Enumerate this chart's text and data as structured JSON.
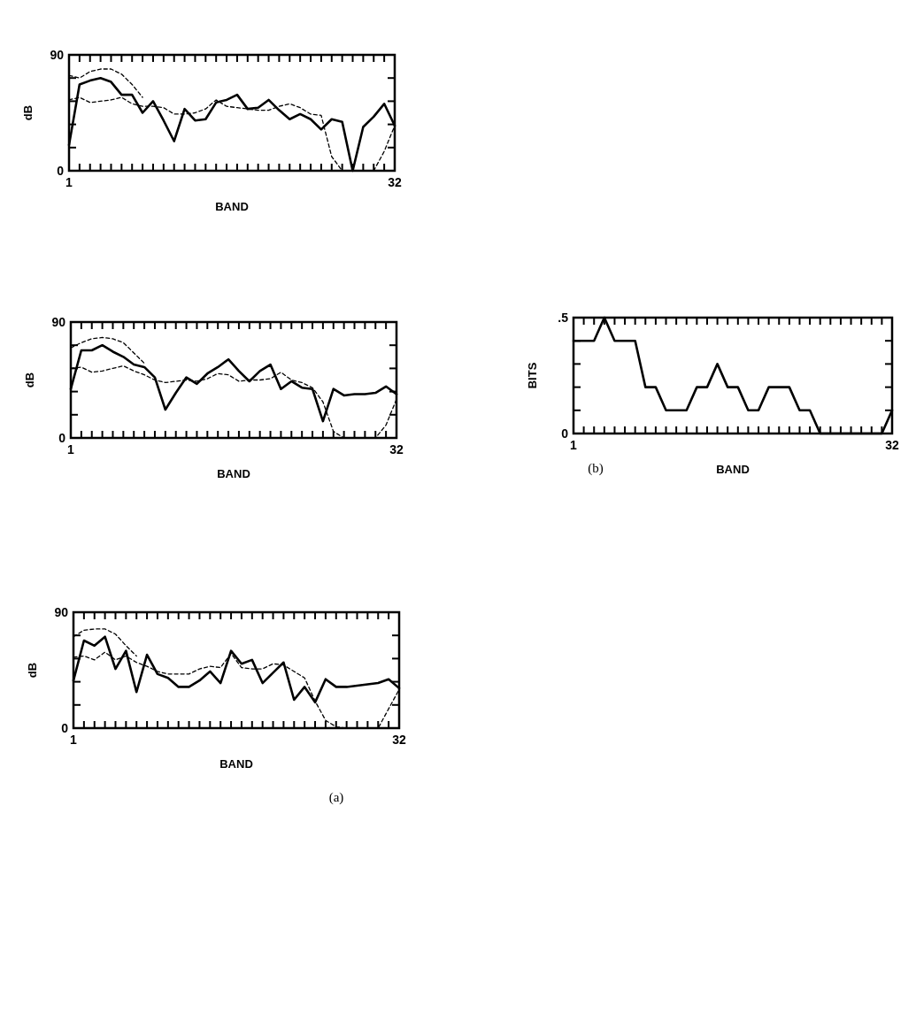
{
  "chart_data": [
    {
      "type": "line",
      "xlabel": "BAND",
      "ylabel": "dB",
      "x": [
        1,
        2,
        3,
        4,
        5,
        6,
        7,
        8,
        9,
        10,
        11,
        12,
        13,
        14,
        15,
        16,
        17,
        18,
        19,
        20,
        21,
        22,
        23,
        24,
        25,
        26,
        27,
        28,
        29,
        30,
        31,
        32
      ],
      "xlim": [
        1,
        32
      ],
      "ylim": [
        0,
        90
      ],
      "xticks": [
        {
          "value": 1,
          "label": "1"
        },
        {
          "value": 2,
          "label": null
        },
        {
          "value": 3,
          "label": null
        },
        {
          "value": 4,
          "label": null
        },
        {
          "value": 5,
          "label": null
        },
        {
          "value": 6,
          "label": null
        },
        {
          "value": 7,
          "label": null
        },
        {
          "value": 8,
          "label": null
        },
        {
          "value": 9,
          "label": null
        },
        {
          "value": 10,
          "label": null
        },
        {
          "value": 11,
          "label": null
        },
        {
          "value": 12,
          "label": null
        },
        {
          "value": 13,
          "label": null
        },
        {
          "value": 14,
          "label": null
        },
        {
          "value": 15,
          "label": null
        },
        {
          "value": 16,
          "label": null
        },
        {
          "value": 17,
          "label": null
        },
        {
          "value": 18,
          "label": null
        },
        {
          "value": 19,
          "label": null
        },
        {
          "value": 20,
          "label": null
        },
        {
          "value": 21,
          "label": null
        },
        {
          "value": 22,
          "label": null
        },
        {
          "value": 23,
          "label": null
        },
        {
          "value": 24,
          "label": null
        },
        {
          "value": 25,
          "label": null
        },
        {
          "value": 26,
          "label": null
        },
        {
          "value": 27,
          "label": null
        },
        {
          "value": 28,
          "label": null
        },
        {
          "value": 29,
          "label": null
        },
        {
          "value": 30,
          "label": null
        },
        {
          "value": 31,
          "label": null
        },
        {
          "value": 32,
          "label": "32"
        }
      ],
      "yticks": [
        {
          "value": 0,
          "label": "0"
        },
        {
          "value": 18,
          "label": null
        },
        {
          "value": 36,
          "label": null
        },
        {
          "value": 54,
          "label": null
        },
        {
          "value": 72,
          "label": null
        },
        {
          "value": 90,
          "label": "90"
        }
      ],
      "series": [
        {
          "color": "#000000",
          "line_style": "solid",
          "values": [
            20,
            67,
            70,
            72,
            69,
            59,
            59,
            45,
            54,
            39,
            23,
            48,
            39,
            40,
            53,
            55,
            59,
            48,
            49,
            55,
            47,
            40,
            44,
            40,
            32,
            40,
            38,
            0,
            34,
            42,
            52,
            35
          ]
        },
        {
          "color": "#000000",
          "line_style": "dashed",
          "values": [
            55,
            57,
            53,
            54,
            55,
            57,
            52,
            50,
            50,
            49,
            44,
            44,
            45,
            48,
            55,
            50,
            49,
            48,
            47,
            47,
            50,
            52,
            49,
            44,
            43,
            11,
            0,
            0,
            0,
            0,
            15,
            35
          ]
        },
        {
          "color": "#000000",
          "line_style": "dashed",
          "values": [
            74,
            72,
            77,
            79,
            79,
            75,
            67,
            57,
            null,
            null,
            null,
            null,
            null,
            null,
            null,
            null,
            null,
            null,
            null,
            null,
            null,
            null,
            null,
            null,
            null,
            null,
            null,
            null,
            null,
            null,
            null,
            null
          ]
        }
      ]
    },
    {
      "type": "line",
      "xlabel": "BAND",
      "ylabel": "dB",
      "x": [
        1,
        2,
        3,
        4,
        5,
        6,
        7,
        8,
        9,
        10,
        11,
        12,
        13,
        14,
        15,
        16,
        17,
        18,
        19,
        20,
        21,
        22,
        23,
        24,
        25,
        26,
        27,
        28,
        29,
        30,
        31,
        32
      ],
      "xlim": [
        1,
        32
      ],
      "ylim": [
        0,
        90
      ],
      "xticks": [
        {
          "value": 1,
          "label": "1"
        },
        {
          "value": 2,
          "label": null
        },
        {
          "value": 3,
          "label": null
        },
        {
          "value": 4,
          "label": null
        },
        {
          "value": 5,
          "label": null
        },
        {
          "value": 6,
          "label": null
        },
        {
          "value": 7,
          "label": null
        },
        {
          "value": 8,
          "label": null
        },
        {
          "value": 9,
          "label": null
        },
        {
          "value": 10,
          "label": null
        },
        {
          "value": 11,
          "label": null
        },
        {
          "value": 12,
          "label": null
        },
        {
          "value": 13,
          "label": null
        },
        {
          "value": 14,
          "label": null
        },
        {
          "value": 15,
          "label": null
        },
        {
          "value": 16,
          "label": null
        },
        {
          "value": 17,
          "label": null
        },
        {
          "value": 18,
          "label": null
        },
        {
          "value": 19,
          "label": null
        },
        {
          "value": 20,
          "label": null
        },
        {
          "value": 21,
          "label": null
        },
        {
          "value": 22,
          "label": null
        },
        {
          "value": 23,
          "label": null
        },
        {
          "value": 24,
          "label": null
        },
        {
          "value": 25,
          "label": null
        },
        {
          "value": 26,
          "label": null
        },
        {
          "value": 27,
          "label": null
        },
        {
          "value": 28,
          "label": null
        },
        {
          "value": 29,
          "label": null
        },
        {
          "value": 30,
          "label": null
        },
        {
          "value": 31,
          "label": null
        },
        {
          "value": 32,
          "label": "32"
        }
      ],
      "yticks": [
        {
          "value": 0,
          "label": "0"
        },
        {
          "value": 18,
          "label": null
        },
        {
          "value": 36,
          "label": null
        },
        {
          "value": 54,
          "label": null
        },
        {
          "value": 72,
          "label": null
        },
        {
          "value": 90,
          "label": "90"
        }
      ],
      "series": [
        {
          "color": "#000000",
          "line_style": "solid",
          "values": [
            38,
            68,
            68,
            72,
            67,
            63,
            57,
            55,
            47,
            22,
            35,
            47,
            42,
            50,
            55,
            61,
            52,
            44,
            52,
            57,
            38,
            44,
            39,
            38,
            13,
            38,
            33,
            34,
            34,
            35,
            40,
            34
          ]
        },
        {
          "color": "#000000",
          "line_style": "dashed",
          "values": [
            54,
            55,
            51,
            52,
            54,
            56,
            52,
            49,
            45,
            43,
            44,
            45,
            44,
            46,
            50,
            49,
            44,
            45,
            45,
            46,
            51,
            45,
            43,
            39,
            28,
            5,
            0,
            0,
            0,
            0,
            10,
            30
          ]
        },
        {
          "color": "#000000",
          "line_style": "dashed",
          "values": [
            70,
            74,
            77,
            78,
            77,
            74,
            66,
            58,
            null,
            null,
            null,
            null,
            null,
            null,
            null,
            null,
            null,
            null,
            null,
            null,
            null,
            null,
            null,
            null,
            null,
            null,
            null,
            null,
            null,
            null,
            null,
            null
          ]
        }
      ]
    },
    {
      "type": "line",
      "xlabel": "BAND",
      "ylabel": "dB",
      "annotations": [
        "(a)"
      ],
      "x": [
        1,
        2,
        3,
        4,
        5,
        6,
        7,
        8,
        9,
        10,
        11,
        12,
        13,
        14,
        15,
        16,
        17,
        18,
        19,
        20,
        21,
        22,
        23,
        24,
        25,
        26,
        27,
        28,
        29,
        30,
        31,
        32
      ],
      "xlim": [
        1,
        32
      ],
      "ylim": [
        0,
        90
      ],
      "xticks": [
        {
          "value": 1,
          "label": "1"
        },
        {
          "value": 2,
          "label": null
        },
        {
          "value": 3,
          "label": null
        },
        {
          "value": 4,
          "label": null
        },
        {
          "value": 5,
          "label": null
        },
        {
          "value": 6,
          "label": null
        },
        {
          "value": 7,
          "label": null
        },
        {
          "value": 8,
          "label": null
        },
        {
          "value": 9,
          "label": null
        },
        {
          "value": 10,
          "label": null
        },
        {
          "value": 11,
          "label": null
        },
        {
          "value": 12,
          "label": null
        },
        {
          "value": 13,
          "label": null
        },
        {
          "value": 14,
          "label": null
        },
        {
          "value": 15,
          "label": null
        },
        {
          "value": 16,
          "label": null
        },
        {
          "value": 17,
          "label": null
        },
        {
          "value": 18,
          "label": null
        },
        {
          "value": 19,
          "label": null
        },
        {
          "value": 20,
          "label": null
        },
        {
          "value": 21,
          "label": null
        },
        {
          "value": 22,
          "label": null
        },
        {
          "value": 23,
          "label": null
        },
        {
          "value": 24,
          "label": null
        },
        {
          "value": 25,
          "label": null
        },
        {
          "value": 26,
          "label": null
        },
        {
          "value": 27,
          "label": null
        },
        {
          "value": 28,
          "label": null
        },
        {
          "value": 29,
          "label": null
        },
        {
          "value": 30,
          "label": null
        },
        {
          "value": 31,
          "label": null
        },
        {
          "value": 32,
          "label": "32"
        }
      ],
      "yticks": [
        {
          "value": 0,
          "label": "0"
        },
        {
          "value": 18,
          "label": null
        },
        {
          "value": 36,
          "label": null
        },
        {
          "value": 54,
          "label": null
        },
        {
          "value": 72,
          "label": null
        },
        {
          "value": 90,
          "label": "90"
        }
      ],
      "series": [
        {
          "color": "#000000",
          "line_style": "solid",
          "values": [
            37,
            68,
            64,
            71,
            46,
            60,
            28,
            57,
            42,
            39,
            32,
            32,
            37,
            44,
            35,
            60,
            50,
            53,
            35,
            43,
            51,
            22,
            32,
            20,
            38,
            32,
            32,
            33,
            34,
            35,
            38,
            31
          ]
        },
        {
          "color": "#000000",
          "line_style": "dashed",
          "values": [
            55,
            56,
            53,
            59,
            53,
            56,
            51,
            48,
            44,
            42,
            42,
            42,
            46,
            48,
            47,
            58,
            47,
            46,
            46,
            50,
            49,
            44,
            39,
            21,
            6,
            1,
            0,
            0,
            0,
            0,
            15,
            30
          ]
        },
        {
          "color": "#000000",
          "line_style": "dashed",
          "values": [
            71,
            76,
            77,
            77,
            73,
            64,
            56,
            null,
            null,
            null,
            null,
            null,
            null,
            null,
            null,
            null,
            null,
            null,
            null,
            null,
            null,
            null,
            null,
            null,
            null,
            null,
            null,
            null,
            null,
            null,
            null,
            null
          ]
        }
      ]
    },
    {
      "type": "line",
      "xlabel": "BAND",
      "ylabel": "BITS",
      "annotations": [
        "(b)"
      ],
      "x": [
        1,
        2,
        3,
        4,
        5,
        6,
        7,
        8,
        9,
        10,
        11,
        12,
        13,
        14,
        15,
        16,
        17,
        18,
        19,
        20,
        21,
        22,
        23,
        24,
        25,
        26,
        27,
        28,
        29,
        30,
        31,
        32
      ],
      "xlim": [
        1,
        32
      ],
      "ylim": [
        0,
        0.5
      ],
      "xticks": [
        {
          "value": 1,
          "label": "1"
        },
        {
          "value": 2,
          "label": null
        },
        {
          "value": 3,
          "label": null
        },
        {
          "value": 4,
          "label": null
        },
        {
          "value": 5,
          "label": null
        },
        {
          "value": 6,
          "label": null
        },
        {
          "value": 7,
          "label": null
        },
        {
          "value": 8,
          "label": null
        },
        {
          "value": 9,
          "label": null
        },
        {
          "value": 10,
          "label": null
        },
        {
          "value": 11,
          "label": null
        },
        {
          "value": 12,
          "label": null
        },
        {
          "value": 13,
          "label": null
        },
        {
          "value": 14,
          "label": null
        },
        {
          "value": 15,
          "label": null
        },
        {
          "value": 16,
          "label": null
        },
        {
          "value": 17,
          "label": null
        },
        {
          "value": 18,
          "label": null
        },
        {
          "value": 19,
          "label": null
        },
        {
          "value": 20,
          "label": null
        },
        {
          "value": 21,
          "label": null
        },
        {
          "value": 22,
          "label": null
        },
        {
          "value": 23,
          "label": null
        },
        {
          "value": 24,
          "label": null
        },
        {
          "value": 25,
          "label": null
        },
        {
          "value": 26,
          "label": null
        },
        {
          "value": 27,
          "label": null
        },
        {
          "value": 28,
          "label": null
        },
        {
          "value": 29,
          "label": null
        },
        {
          "value": 30,
          "label": null
        },
        {
          "value": 31,
          "label": null
        },
        {
          "value": 32,
          "label": "32"
        }
      ],
      "yticks": [
        {
          "value": 0,
          "label": "0"
        },
        {
          "value": 0.1,
          "label": null
        },
        {
          "value": 0.2,
          "label": null
        },
        {
          "value": 0.3,
          "label": null
        },
        {
          "value": 0.4,
          "label": null
        },
        {
          "value": 0.5,
          "label": ".5"
        }
      ],
      "series": [
        {
          "color": "#000000",
          "line_style": "solid",
          "values": [
            0.4,
            0.4,
            0.4,
            0.5,
            0.4,
            0.4,
            0.4,
            0.2,
            0.2,
            0.1,
            0.1,
            0.1,
            0.2,
            0.2,
            0.3,
            0.2,
            0.2,
            0.1,
            0.1,
            0.2,
            0.2,
            0.2,
            0.1,
            0.1,
            0,
            0,
            0,
            0,
            0,
            0,
            0,
            0.1
          ]
        }
      ]
    }
  ]
}
